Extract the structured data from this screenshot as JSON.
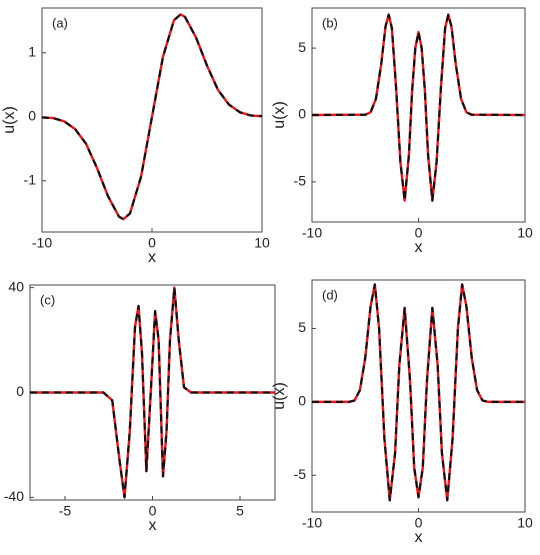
{
  "chart_data": [
    {
      "type": "line",
      "annotation": "(a)",
      "x_label": "x",
      "y_label": "u(x)",
      "x": [
        -10,
        -9,
        -8,
        -7,
        -6,
        -5,
        -4,
        -3,
        -2.6,
        -2,
        -1,
        0,
        1,
        2,
        2.6,
        3,
        4,
        5,
        6,
        7,
        8,
        9,
        10
      ],
      "series": [
        {
          "color": "#e8161b",
          "linestyle": "solid",
          "values": [
            -0.01,
            -0.02,
            -0.07,
            -0.19,
            -0.42,
            -0.8,
            -1.24,
            -1.56,
            -1.6,
            -1.51,
            -0.94,
            0,
            0.94,
            1.51,
            1.6,
            1.56,
            1.24,
            0.8,
            0.42,
            0.19,
            0.07,
            0.02,
            0.01
          ]
        },
        {
          "color": "#111111",
          "linestyle": "dashed",
          "values": [
            -0.01,
            -0.02,
            -0.07,
            -0.19,
            -0.42,
            -0.8,
            -1.24,
            -1.56,
            -1.6,
            -1.51,
            -0.94,
            0,
            0.94,
            1.51,
            1.6,
            1.56,
            1.24,
            0.8,
            0.42,
            0.19,
            0.07,
            0.02,
            0.01
          ]
        }
      ],
      "xlim": [
        -10,
        10
      ],
      "ylim": [
        -1.8,
        1.7
      ],
      "xticks": [
        -10,
        0,
        10
      ],
      "yticks": [
        -1,
        0,
        1
      ]
    },
    {
      "type": "line",
      "annotation": "(b)",
      "x_label": "x",
      "y_label": "u(x)",
      "x": [
        -10,
        -5,
        -4.5,
        -4,
        -3.5,
        -3.1,
        -2.8,
        -2.5,
        -2.1,
        -1.7,
        -1.3,
        -0.9,
        -0.6,
        -0.3,
        0,
        0.3,
        0.6,
        0.9,
        1.3,
        1.7,
        2.1,
        2.5,
        2.8,
        3.1,
        3.5,
        4,
        4.5,
        5,
        10
      ],
      "series": [
        {
          "color": "#e8161b",
          "linestyle": "solid",
          "values": [
            0,
            0.02,
            0.2,
            1.2,
            3.8,
            6.6,
            7.5,
            6.5,
            2,
            -3.5,
            -6.4,
            -3,
            1.8,
            5,
            6.2,
            5,
            1.8,
            -3,
            -6.4,
            -3.5,
            2,
            6.5,
            7.5,
            6.6,
            3.8,
            1.2,
            0.2,
            0.02,
            0
          ]
        },
        {
          "color": "#111111",
          "linestyle": "dashed",
          "values": [
            0,
            0.02,
            0.2,
            1.2,
            3.8,
            6.6,
            7.5,
            6.5,
            2,
            -3.5,
            -6.4,
            -3,
            1.8,
            5,
            6.2,
            5,
            1.8,
            -3,
            -6.4,
            -3.5,
            2,
            6.5,
            7.5,
            6.6,
            3.8,
            1.2,
            0.2,
            0.02,
            0
          ]
        }
      ],
      "xlim": [
        -10,
        10
      ],
      "ylim": [
        -8,
        8
      ],
      "xticks": [
        -10,
        0,
        10
      ],
      "yticks": [
        -5,
        0,
        5
      ]
    },
    {
      "type": "line",
      "annotation": "(c)",
      "x_label": "x",
      "x": [
        -7,
        -2.8,
        -2.3,
        -1.9,
        -1.6,
        -1.3,
        -1,
        -0.8,
        -0.6,
        -0.35,
        -0.1,
        0.15,
        0.35,
        0.6,
        0.8,
        1,
        1.25,
        1.5,
        1.8,
        2.2,
        7
      ],
      "series": [
        {
          "color": "#e8161b",
          "linestyle": "solid",
          "values": [
            0,
            0,
            -3,
            -25,
            -40,
            -15,
            25,
            33,
            15,
            -30,
            0,
            31,
            20,
            -32,
            -15,
            20,
            40,
            20,
            2,
            0,
            0
          ]
        },
        {
          "color": "#111111",
          "linestyle": "dashed",
          "values": [
            0,
            0,
            -3,
            -25,
            -40,
            -15,
            25,
            33,
            15,
            -30,
            0,
            31,
            20,
            -32,
            -15,
            20,
            40,
            20,
            2,
            0,
            0
          ]
        }
      ],
      "xlim": [
        -7,
        7
      ],
      "ylim": [
        -41,
        41
      ],
      "xticks": [
        -5,
        0,
        5
      ],
      "yticks": [
        -40,
        0,
        40
      ]
    },
    {
      "type": "line",
      "annotation": "(d)",
      "x_label": "x",
      "y_label": "u(x)",
      "x": [
        -10,
        -6.5,
        -6,
        -5.5,
        -5,
        -4.5,
        -4.1,
        -3.7,
        -3.2,
        -2.7,
        -2.2,
        -1.8,
        -1.3,
        -0.8,
        -0.4,
        0,
        0.4,
        0.8,
        1.3,
        1.8,
        2.2,
        2.7,
        3.2,
        3.7,
        4.1,
        4.5,
        5,
        5.5,
        6,
        6.5,
        10
      ],
      "series": [
        {
          "color": "#e8161b",
          "linestyle": "solid",
          "values": [
            0,
            0,
            0.1,
            0.8,
            3,
            6.5,
            8,
            5,
            -2.5,
            -6.7,
            -3.5,
            2.5,
            6.4,
            1.5,
            -4.5,
            -6.5,
            -4.5,
            1.5,
            6.4,
            2.5,
            -3.5,
            -6.7,
            -2.5,
            5,
            8,
            6.5,
            3,
            0.8,
            0.1,
            0,
            0
          ]
        },
        {
          "color": "#111111",
          "linestyle": "dashed",
          "values": [
            0,
            0,
            0.1,
            0.8,
            3,
            6.5,
            8,
            5,
            -2.5,
            -6.7,
            -3.5,
            2.5,
            6.4,
            1.5,
            -4.5,
            -6.5,
            -4.5,
            1.5,
            6.4,
            2.5,
            -3.5,
            -6.7,
            -2.5,
            5,
            8,
            6.5,
            3,
            0.8,
            0.1,
            0,
            0
          ]
        }
      ],
      "xlim": [
        -10,
        10
      ],
      "ylim": [
        -7.5,
        8.3
      ],
      "xticks": [
        -10,
        0,
        10
      ],
      "yticks": [
        -5,
        0,
        5
      ]
    }
  ]
}
